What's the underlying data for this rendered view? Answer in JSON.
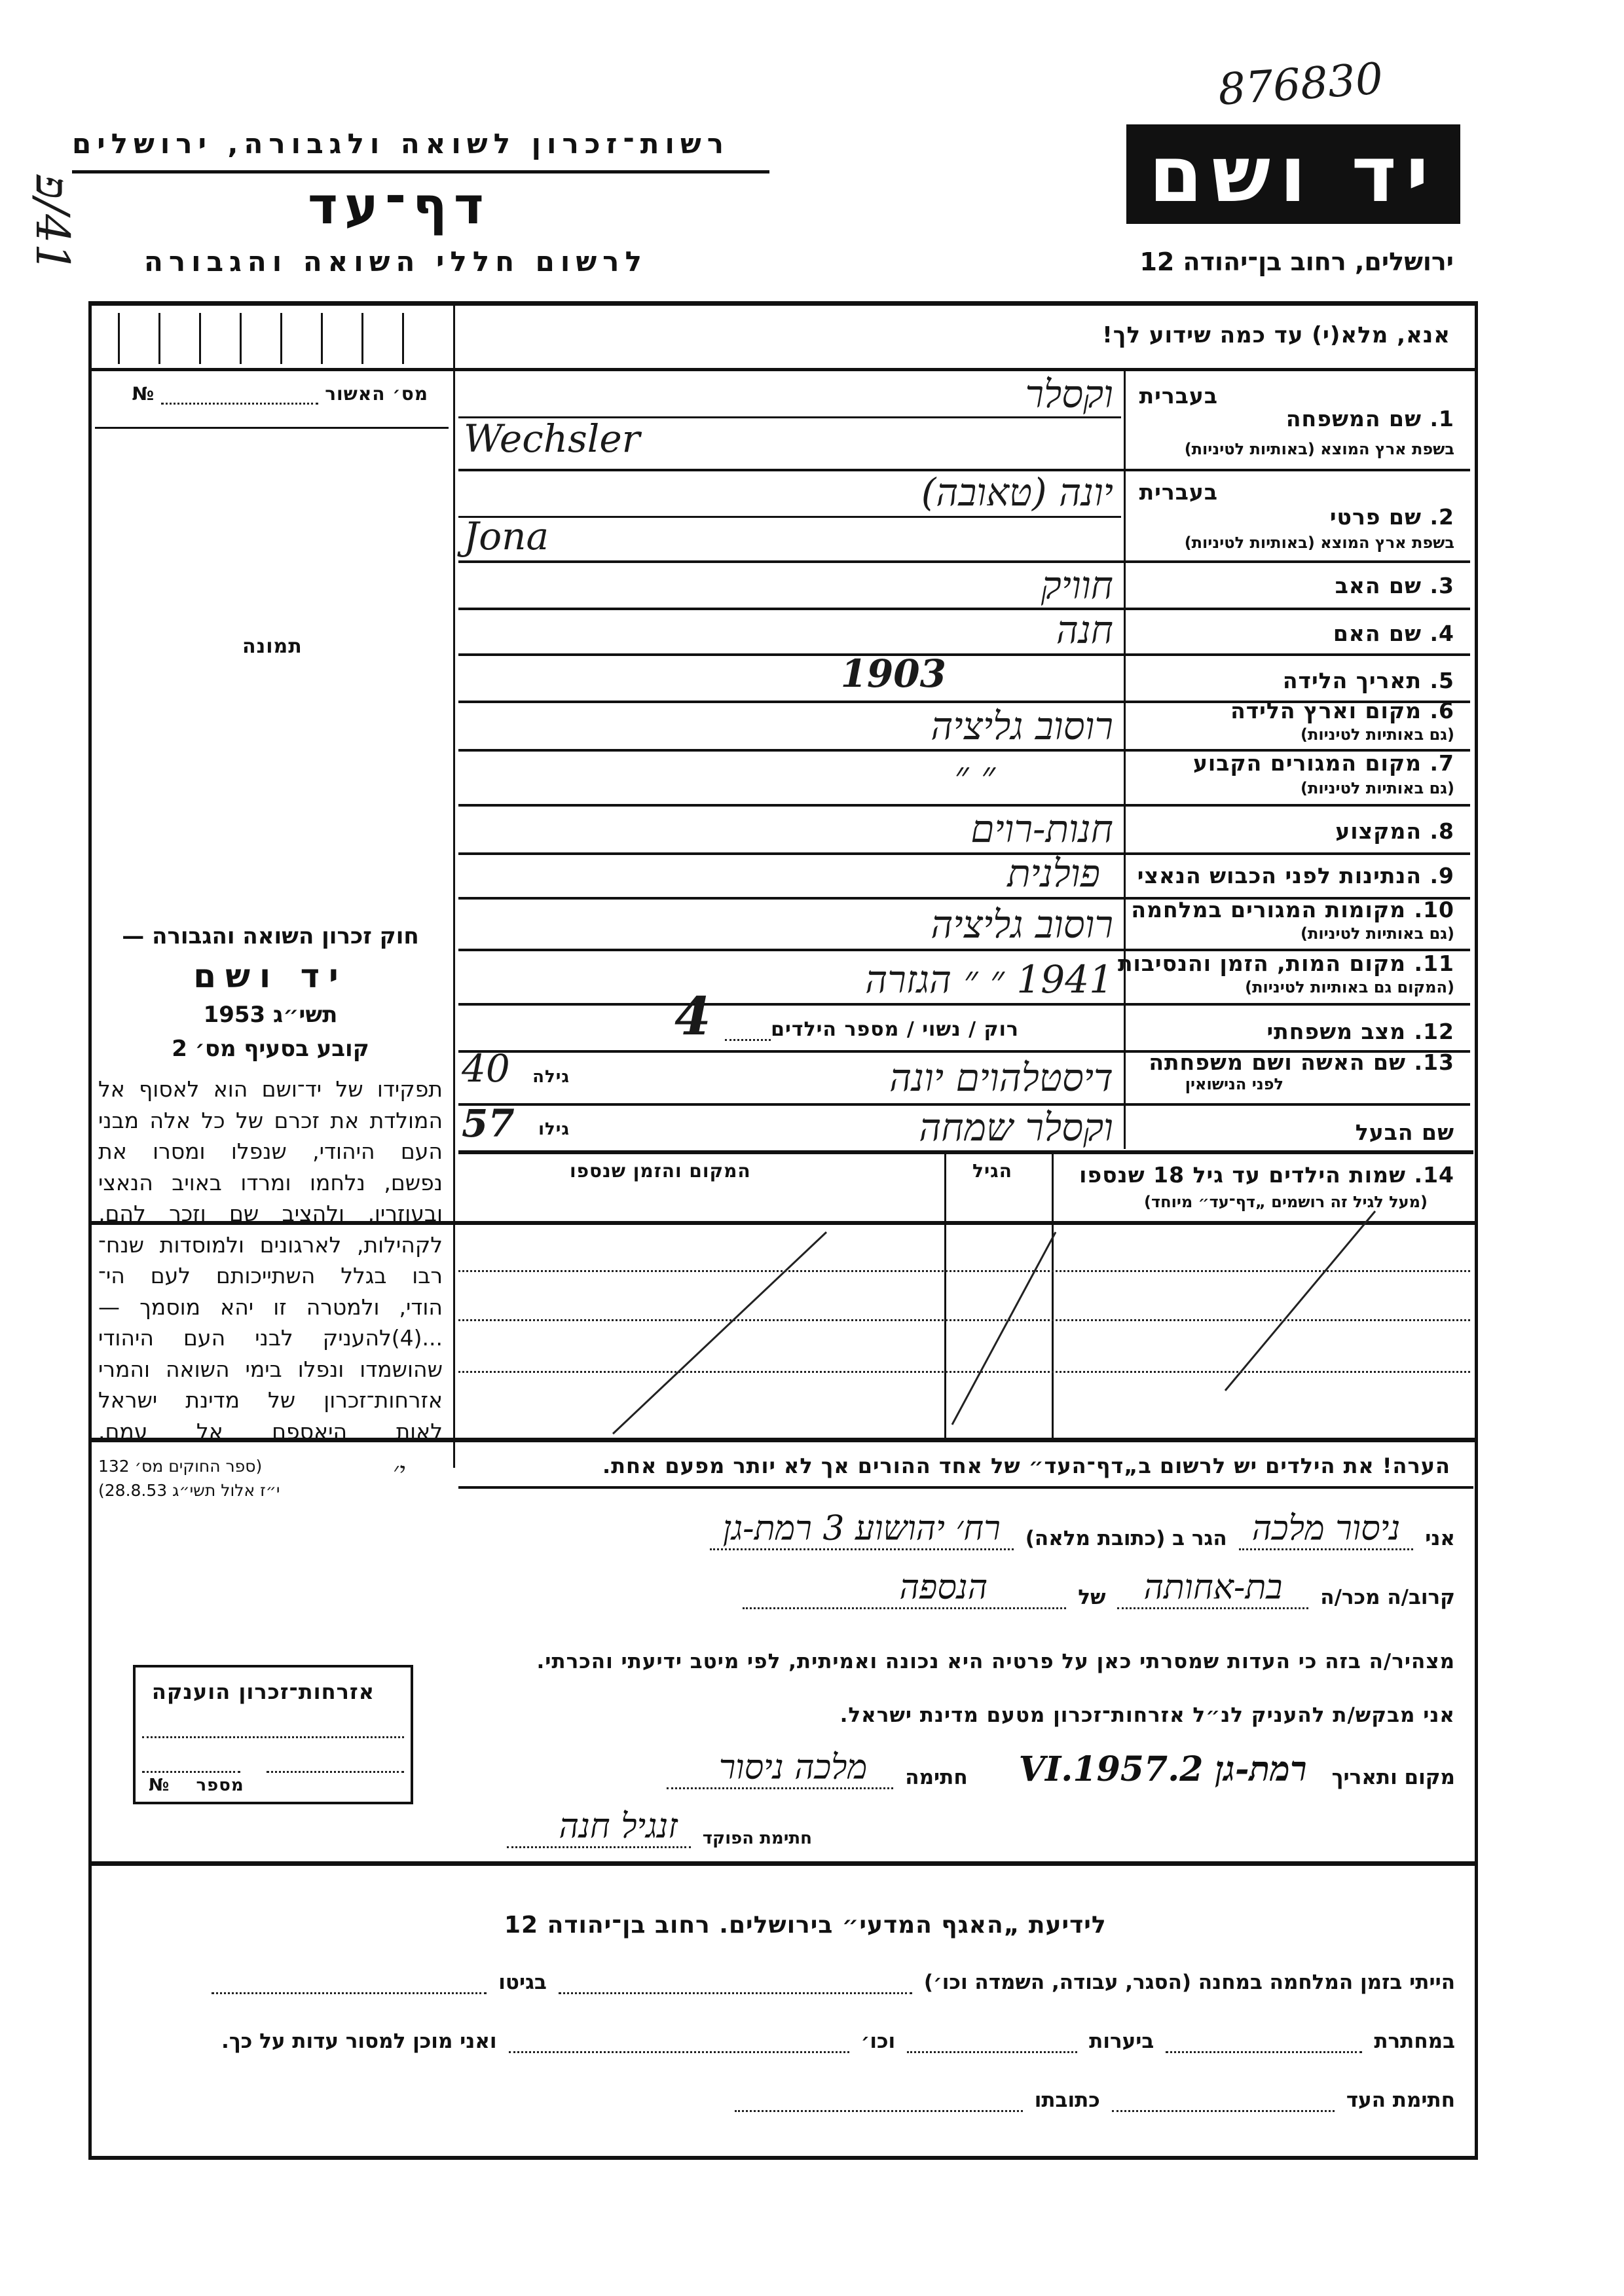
{
  "archive_number": "876830",
  "margin_note": "41/פ",
  "header": {
    "authority": "רשות־זכרון לשואה ולגבורה, ירושלים",
    "form_title": "דף־עד",
    "subtitle": "לרשום חללי השואה והגבורה",
    "logo_text": "יד ושם",
    "address": "ירושלים, רחוב בן־יהודה 12"
  },
  "instruction": "אנא, מלא(י) עד כמה שידוע לך!",
  "sidebar": {
    "approval_no_label": "מס׳ האשור",
    "no_sign": "№",
    "photo_label": "תמונה",
    "law": {
      "title": "חוק זכרון השואה והגבורה —",
      "name": "יד ושם",
      "year": "תשי״ג 1953",
      "section": "קובע בסעיף מס׳ 2",
      "paragraph": [
        "תפקידו של יד־ושם הוא לאסוף אל",
        "המולדת את זכרם של כל אלה מבני",
        "העם היהודי, שנפלו ומסרו את",
        "נפשם, נלחמו ומרדו באויב הנאצי",
        "ובעוזריו, ולהציב שם וזכר להם,",
        "לקהילות, לארגונים ולמוסדות שנח־",
        "רבו בגלל השתייכותם לעם הי־",
        "הודי, ולמטרה זו יהא מוסמך —",
        "...(4)להעניק לבני העם היהודי",
        "שהושמדו ונפלו בימי השואה והמרי",
        "אזרחות־זכרון של מדינת ישראל",
        "לאות היאספם אל עמם."
      ],
      "source_1": "(ספר החוקים מס׳ 132",
      "source_2": "י״ז אלול תשי״ג 28.8.53)",
      "handwritten_mark": "י׳"
    },
    "citizenship_box": {
      "title": "אזרחות־זכרון הוענקה",
      "number_label": "מספר",
      "no_sign": "№"
    }
  },
  "fields": {
    "hebrew_label": "בעברית",
    "latin_sub": "בשפת ארץ המוצא (באותיות לטיניות)",
    "also_latin_sub": "(גם באותיות לטיניות)",
    "f1_label": "1. שם המשפחה",
    "f1_hebrew": "וקסלר",
    "f1_latin": "Wechsler",
    "f2_label": "2. שם פרטי",
    "f2_hebrew": "יונה (טאובה)",
    "f2_latin": "Jona",
    "f3_label": "3. שם האב",
    "f3_value": "חוויק",
    "f4_label": "4. שם האם",
    "f4_value": "חנה",
    "f5_label": "5. תאריך הלידה",
    "f5_value": "1903",
    "f6_label": "6. מקום וארץ הלידה",
    "f6_value": "רוסוב גליציה",
    "f7_label": "7. מקום המגורים הקבוע",
    "f7_value": "״          ״",
    "f8_label": "8. המקצוע",
    "f8_value": "חנות-רוים",
    "f9_label": "9. הנתינות לפני הכבוש הנאצי",
    "f9_value": "פולנית",
    "f10_label": "10. מקומות המגורים במלחמה",
    "f10_value": "רוסוב גליציה",
    "f11_label": "11. מקום המות, הזמן והנסיבות",
    "f11_sub": "(המקום גם באותיות לטיניות)",
    "f11_value": "1941 ״ ״ הגזרה",
    "f12_label": "12. מצב משפחתי",
    "f12_options": "רוק / נשוי / מספר הילדים",
    "f12_children": "4",
    "f13_label": "13. שם האשה ושם משפחתה",
    "f13_sub": "לפני הנישואין",
    "f13_value": "דיסטלהוים   יונה",
    "f13_age_label": "גילה",
    "f13_age": "40",
    "husband_label": "שם הבעל",
    "husband_value": "וקסלר שמחה",
    "husband_age_label": "גילו",
    "husband_age": "57"
  },
  "children_table": {
    "label": "14. שמות הילדים עד גיל 18 שנספו",
    "sub": "(מעל לגיל זה רושמים „דף־עד״ מיוחד)",
    "col_age": "הגיל",
    "col_place": "המקום והזמן שנספו"
  },
  "note": "הערה!  את הילדים יש לרשום ב„דף־העד״ של אחד ההורים אך לא יותר מפעם אחת.",
  "declaration": {
    "i_label": "אני",
    "witness_name": "ניסור מלכה",
    "residing_label": "הגר ב (כתובת מלאה)",
    "address": "רח׳ יהושוע 3 רמת-גן",
    "relation_label": "קרוב/ה מכר/ה",
    "relation": "בת-אחותה",
    "of_label": "של",
    "of_value": "הנספה",
    "statement": "מצהיר/ה בזה כי העדות שמסרתי כאן על פרטיה היא נכונה ואמיתית, לפי מיטב ידיעתי והכרתי.",
    "request": "אני מבקש/ת להעניק לנ״ל אזרחות־זכרון מטעם מדינת ישראל.",
    "place_date_label": "מקום ותאריך",
    "place_date": "רמת-גן  2.VI.1957",
    "signature_label": "חתימה",
    "signature": "מלכה ניסור",
    "official_label": "חתימת הפוקד",
    "official_signature": "זנגיל חנה"
  },
  "footer": {
    "title": "לידיעת „האגף המדעי״ בירושלים.  רחוב בן־יהודה 12",
    "camp_label": "הייתי בזמן המלחמה במחנה (הסגר, עבודה, השמדה וכו׳)",
    "ghetto_label": "בגיטו",
    "underground_label": "במחתרת",
    "forests_label": "ביערות",
    "etc_label": "וכו׳",
    "willing_label": "ואני מוכן למסור עדות על כך.",
    "witness_sig_label": "חתימת העד",
    "address_label": "כתובתו"
  }
}
